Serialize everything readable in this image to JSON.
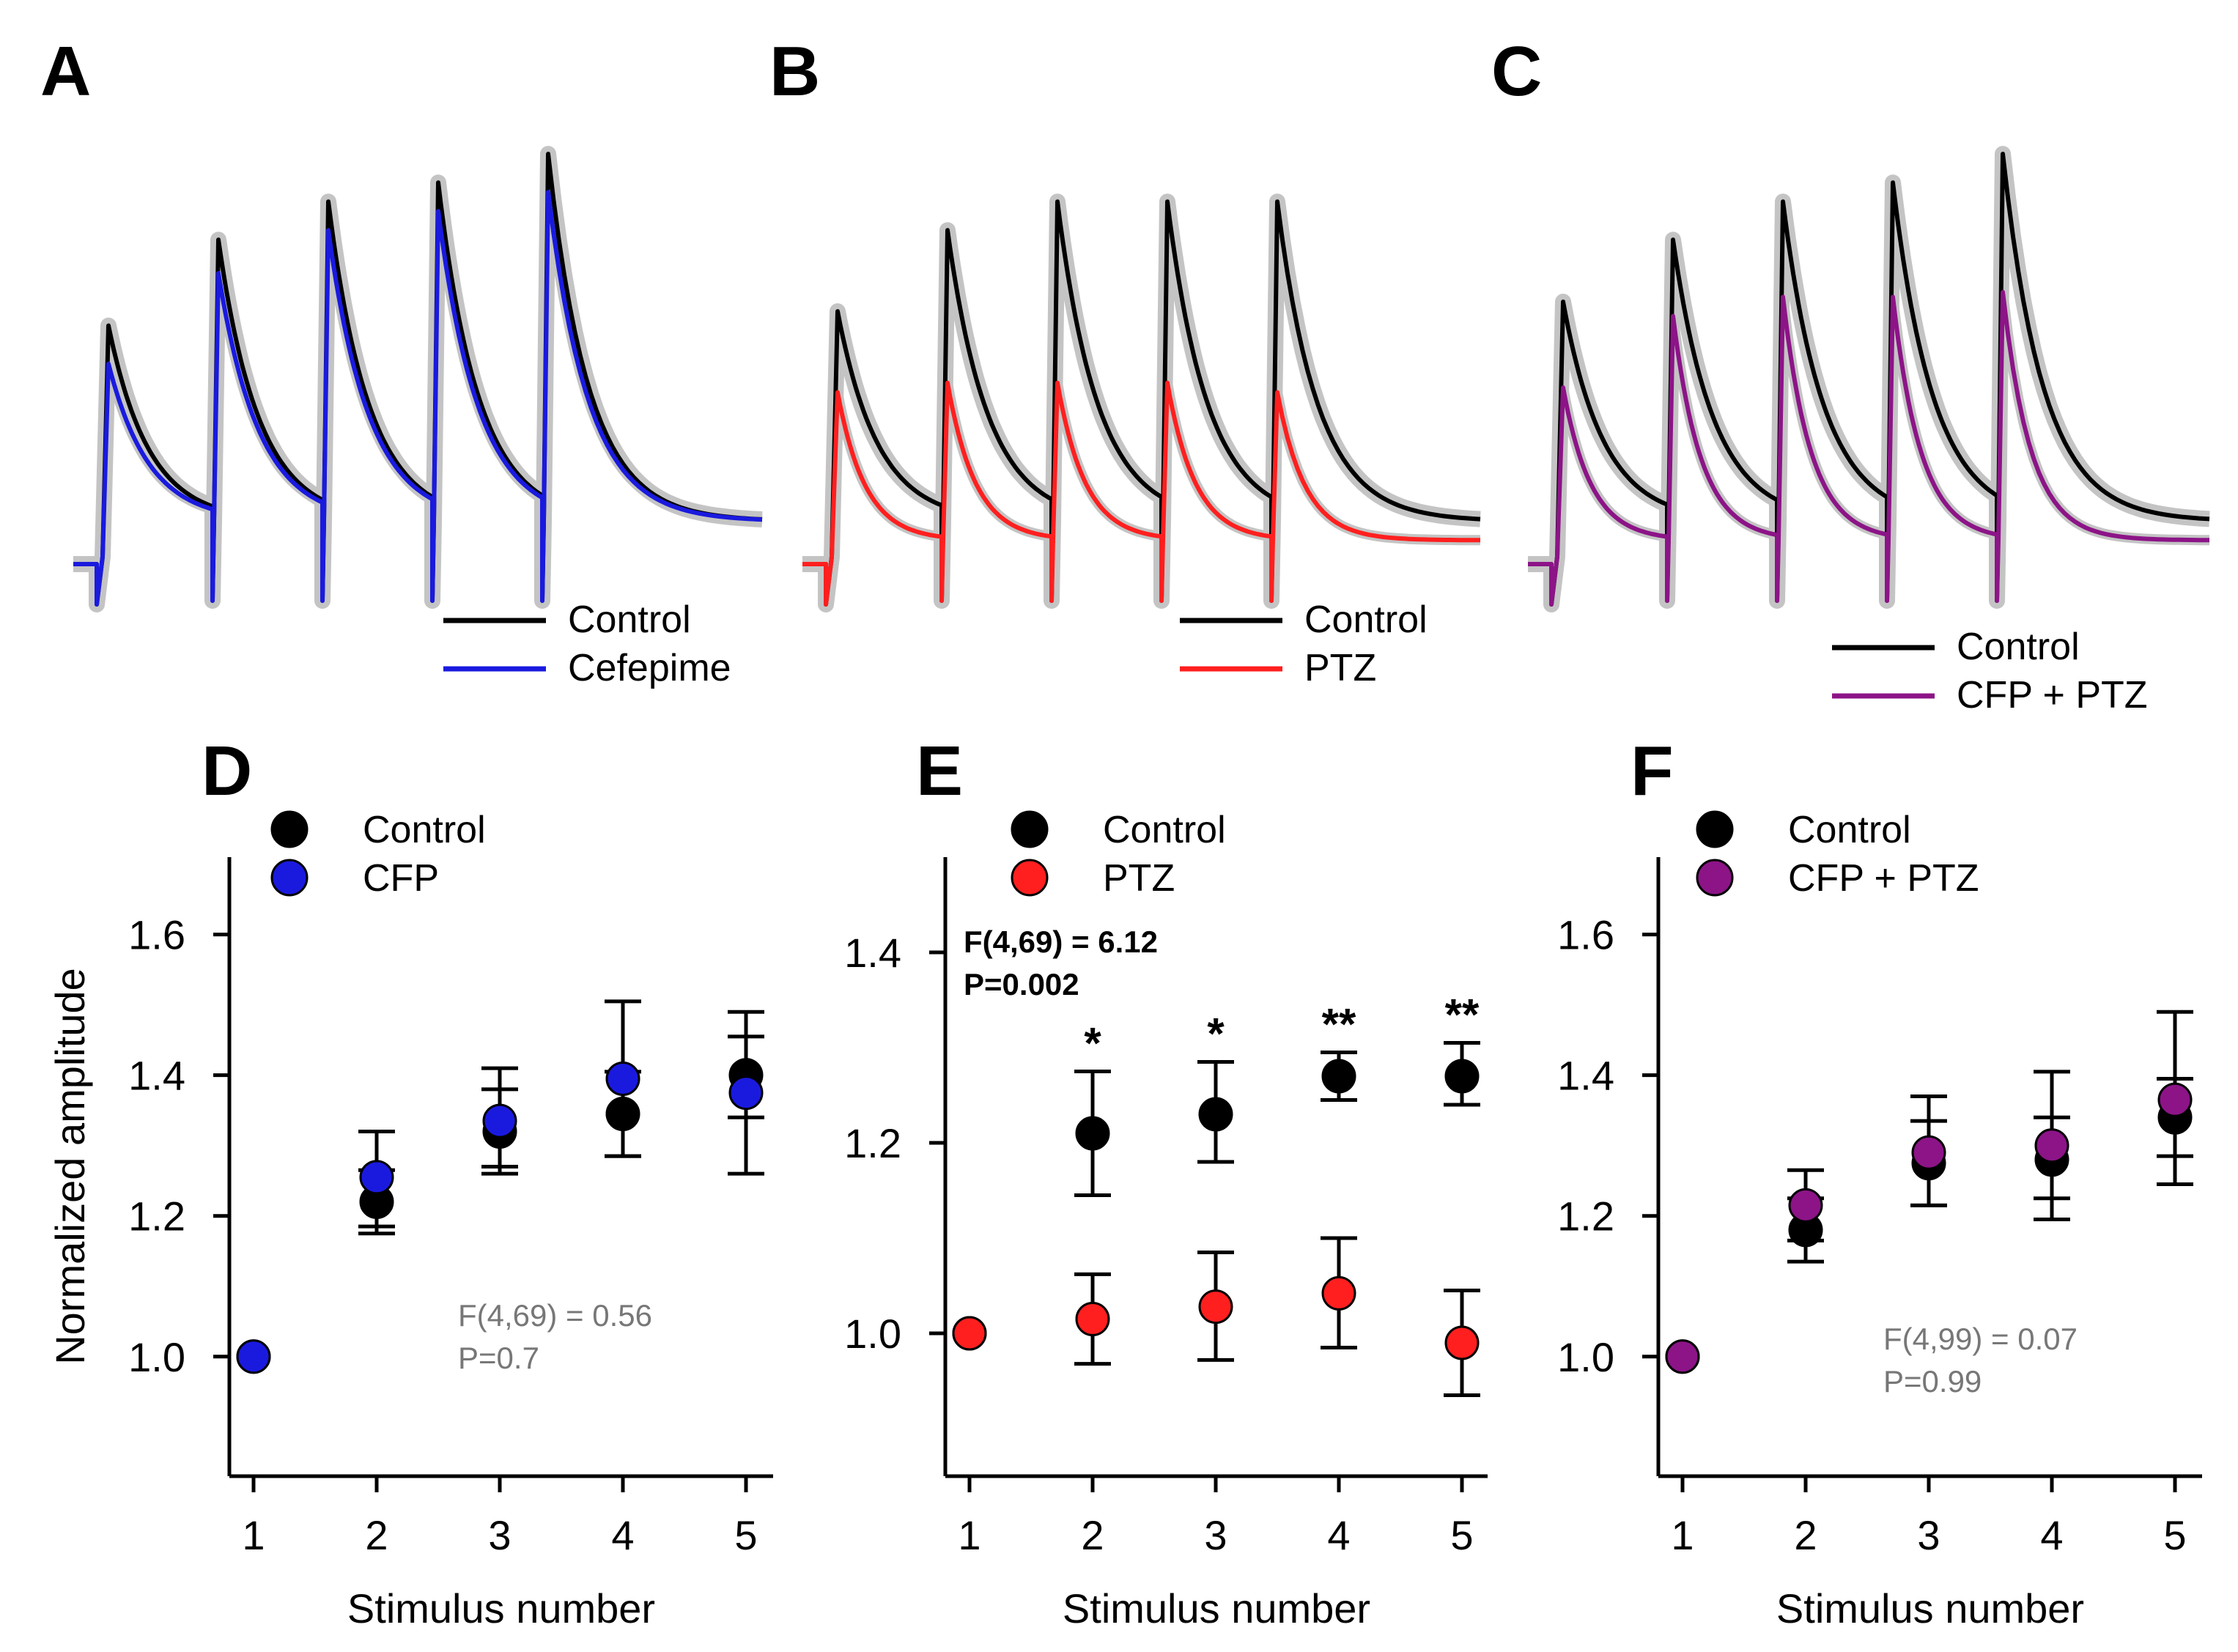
{
  "colors": {
    "control": "#000000",
    "cefepime": "#1a1adf",
    "ptz": "#ff1f1f",
    "cfp_ptz": "#8c1487",
    "sem_shadow": "#c4c4c4",
    "stat_gray": "#777777"
  },
  "chart_data": [
    {
      "panel": "A",
      "type": "line",
      "description_kind": "trace",
      "series": [
        {
          "name": "Control",
          "color_key": "control",
          "peaks": [
            0.5,
            0.68,
            0.76,
            0.8,
            0.86
          ]
        },
        {
          "name": "Cefepime",
          "color_key": "cefepime",
          "peaks": [
            0.42,
            0.61,
            0.7,
            0.74,
            0.78
          ]
        }
      ],
      "legend": [
        "Control",
        "Cefepime"
      ]
    },
    {
      "panel": "B",
      "type": "line",
      "description_kind": "trace",
      "series": [
        {
          "name": "Control",
          "color_key": "control",
          "peaks": [
            0.53,
            0.7,
            0.76,
            0.76,
            0.76
          ]
        },
        {
          "name": "PTZ",
          "color_key": "ptz",
          "peaks": [
            0.36,
            0.38,
            0.38,
            0.38,
            0.36
          ]
        }
      ],
      "legend": [
        "Control",
        "PTZ"
      ]
    },
    {
      "panel": "C",
      "type": "line",
      "description_kind": "trace",
      "series": [
        {
          "name": "Control",
          "color_key": "control",
          "peaks": [
            0.55,
            0.68,
            0.76,
            0.8,
            0.86
          ]
        },
        {
          "name": "CFP + PTZ",
          "color_key": "cfp_ptz",
          "peaks": [
            0.37,
            0.52,
            0.56,
            0.56,
            0.57
          ]
        }
      ],
      "legend": [
        "Control",
        "CFP + PTZ"
      ]
    },
    {
      "panel": "D",
      "type": "scatter",
      "categories": [
        1,
        2,
        3,
        4,
        5
      ],
      "xlabel": "Stimulus number",
      "ylabel": "Normalized amplitude",
      "ylim": [
        0.83,
        1.71
      ],
      "yticks": [
        1.0,
        1.2,
        1.4,
        1.6
      ],
      "ytick_labels": [
        "1.0",
        "1.2",
        "1.4",
        "1.6"
      ],
      "series": [
        {
          "name": "Control",
          "color_key": "control",
          "values": [
            1.0,
            1.22,
            1.32,
            1.345,
            1.4
          ],
          "err_low": [
            1.0,
            1.175,
            1.26,
            1.285,
            1.26
          ],
          "err_high": [
            1.0,
            1.265,
            1.38,
            1.405,
            1.49
          ]
        },
        {
          "name": "CFP",
          "color_key": "cefepime",
          "values": [
            1.0,
            1.255,
            1.335,
            1.395,
            1.375
          ],
          "err_low": [
            1.0,
            1.185,
            1.27,
            1.285,
            1.34
          ],
          "err_high": [
            1.0,
            1.32,
            1.41,
            1.505,
            1.455
          ]
        }
      ],
      "legend": [
        "Control",
        "CFP"
      ],
      "stat_lines": [
        "F(4,69) = 0.56",
        "P=0.7"
      ],
      "significance": []
    },
    {
      "panel": "E",
      "type": "scatter",
      "categories": [
        1,
        2,
        3,
        4,
        5
      ],
      "xlabel": "Stimulus number",
      "ylabel": "",
      "ylim": [
        0.85,
        1.5
      ],
      "yticks": [
        1.0,
        1.2,
        1.4
      ],
      "ytick_labels": [
        "1.0",
        "1.2",
        "1.4"
      ],
      "series": [
        {
          "name": "Control",
          "color_key": "control",
          "values": [
            1.0,
            1.21,
            1.23,
            1.27,
            1.27
          ],
          "err_low": [
            1.0,
            1.145,
            1.18,
            1.245,
            1.24
          ],
          "err_high": [
            1.0,
            1.275,
            1.285,
            1.295,
            1.305
          ]
        },
        {
          "name": "PTZ",
          "color_key": "ptz",
          "values": [
            1.0,
            1.015,
            1.028,
            1.042,
            0.99
          ],
          "err_low": [
            1.0,
            0.968,
            0.972,
            0.985,
            0.935
          ],
          "err_high": [
            1.0,
            1.062,
            1.085,
            1.1,
            1.045
          ]
        }
      ],
      "legend": [
        "Control",
        "PTZ"
      ],
      "stat_lines": [
        "F(4,69) = 6.12",
        "P=0.002"
      ],
      "significance": [
        "",
        "*",
        "*",
        "**",
        "**"
      ]
    },
    {
      "panel": "F",
      "type": "scatter",
      "categories": [
        1,
        2,
        3,
        4,
        5
      ],
      "xlabel": "Stimulus number",
      "ylabel": "",
      "ylim": [
        0.83,
        1.71
      ],
      "yticks": [
        1.0,
        1.2,
        1.4,
        1.6
      ],
      "ytick_labels": [
        "1.0",
        "1.2",
        "1.4",
        "1.6"
      ],
      "series": [
        {
          "name": "Control",
          "color_key": "control",
          "values": [
            1.0,
            1.18,
            1.275,
            1.28,
            1.34
          ],
          "err_low": [
            1.0,
            1.135,
            1.215,
            1.195,
            1.285
          ],
          "err_high": [
            1.0,
            1.225,
            1.335,
            1.34,
            1.395
          ]
        },
        {
          "name": "CFP + PTZ",
          "color_key": "cfp_ptz",
          "values": [
            1.0,
            1.215,
            1.29,
            1.3,
            1.365
          ],
          "err_low": [
            1.0,
            1.165,
            1.215,
            1.225,
            1.245
          ],
          "err_high": [
            1.0,
            1.265,
            1.37,
            1.405,
            1.49
          ]
        }
      ],
      "legend": [
        "Control",
        "CFP + PTZ"
      ],
      "stat_lines": [
        "F(4,99) = 0.07",
        "P=0.99"
      ],
      "significance": []
    }
  ]
}
